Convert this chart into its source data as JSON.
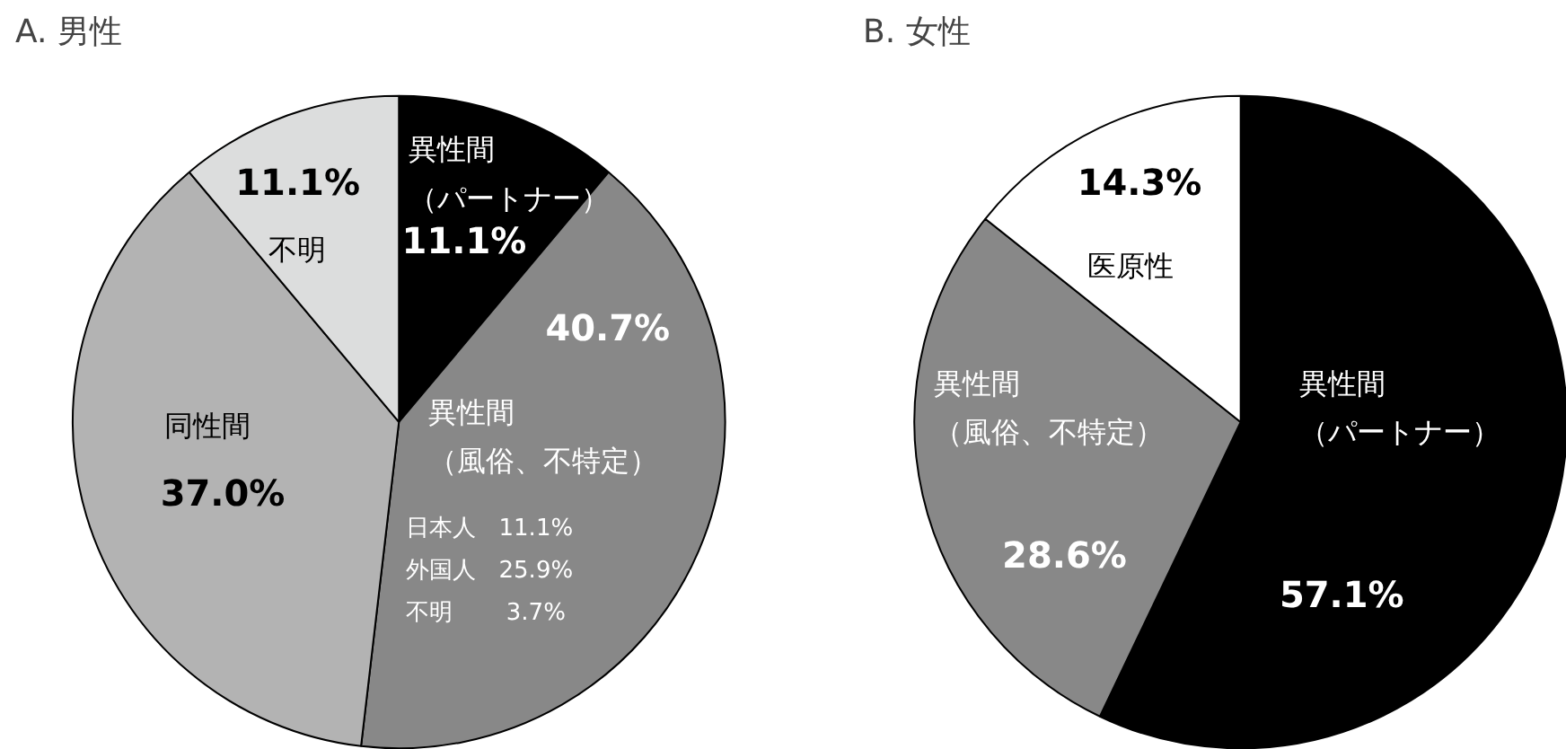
{
  "chart_data": [
    {
      "type": "pie",
      "title": "A. 男性",
      "categories": [
        "異性間（パートナー）",
        "異性間（風俗、不特定）",
        "同性間",
        "不明"
      ],
      "values": [
        11.1,
        40.7,
        37.0,
        11.1
      ],
      "colors": [
        "#000000",
        "#888888",
        "#b3b3b3",
        "#dcdddd"
      ],
      "value_labels": [
        "11.1%",
        "40.7%",
        "37.0%",
        "11.1%"
      ],
      "annotations": [
        "日本人　11.1%",
        "外国人　25.9%",
        "不明　　 3.7%"
      ]
    },
    {
      "type": "pie",
      "title": "B. 女性",
      "categories": [
        "異性間（パートナー）",
        "異性間（風俗、不特定）",
        "医原性"
      ],
      "values": [
        57.1,
        28.6,
        14.3
      ],
      "colors": [
        "#000000",
        "#888888",
        "#ffffff"
      ],
      "value_labels": [
        "57.1%",
        "28.6%",
        "14.3%"
      ]
    }
  ]
}
